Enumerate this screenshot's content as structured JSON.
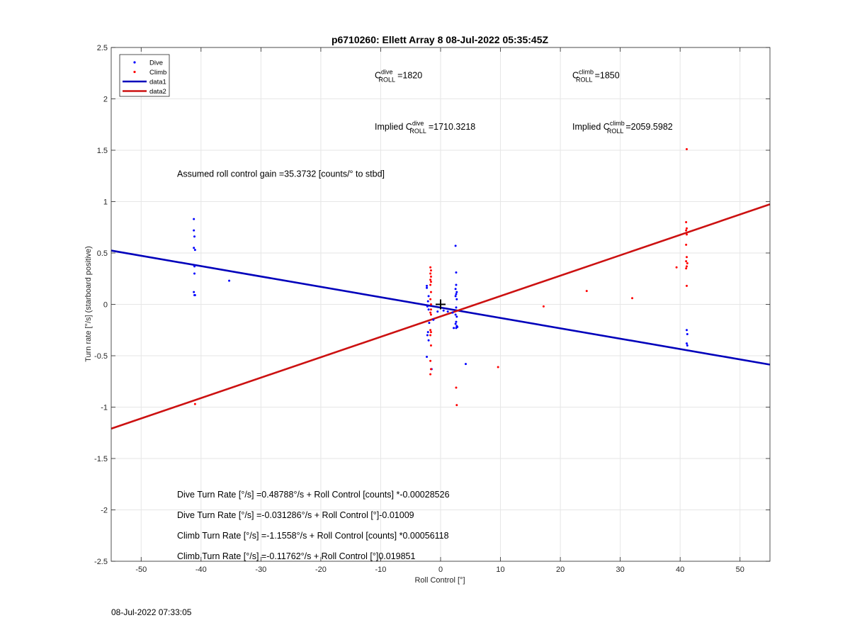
{
  "chart_data": {
    "type": "scatter",
    "title": "p6710260: Ellett Array 8 08-Jul-2022 05:35:45Z",
    "xlabel": "Roll Control [°]",
    "ylabel": "Turn rate [°/s] (starboard positive)",
    "xlim": [
      -55,
      55
    ],
    "ylim": [
      -2.5,
      2.5
    ],
    "xticks": [
      -50,
      -40,
      -30,
      -20,
      -10,
      0,
      10,
      20,
      30,
      40,
      50
    ],
    "yticks": [
      -2.5,
      -2,
      -1.5,
      -1,
      -0.5,
      0,
      0.5,
      1,
      1.5,
      2,
      2.5
    ],
    "grid": true,
    "legend_position": "top-left",
    "legend": [
      "Dive",
      "Climb",
      "data1",
      "data2"
    ],
    "colors": {
      "dive": "#0000ff",
      "climb": "#ff0000",
      "data1": "#0000bb",
      "data2": "#cc1111"
    },
    "series": [
      {
        "name": "Dive",
        "kind": "points",
        "x": [
          -41.2,
          -41.2,
          -41.1,
          -41.2,
          -41.0,
          -41.1,
          -41.1,
          -41.2,
          -41.1,
          -41.0,
          -35.3,
          -2.3,
          -2.3,
          -2.0,
          -2.1,
          -2.2,
          -2.0,
          -1.9,
          -2.1,
          -2.2,
          -2.0,
          -2.3,
          -1.5,
          -1.2,
          -0.5,
          0.5,
          1.2,
          2.0,
          2.5,
          2.6,
          2.6,
          2.5,
          2.7,
          2.6,
          2.5,
          2.7,
          2.6,
          2.5,
          2.7,
          2.6,
          2.5,
          2.7,
          2.6,
          2.2,
          2.8,
          4.2,
          41.1,
          41.2,
          41.1,
          41.2
        ],
        "y": [
          0.83,
          0.72,
          0.66,
          0.55,
          0.53,
          0.37,
          0.3,
          0.12,
          0.09,
          0.09,
          0.23,
          0.18,
          0.16,
          0.08,
          0.03,
          -0.02,
          -0.05,
          -0.18,
          -0.27,
          -0.3,
          -0.35,
          -0.51,
          -0.63,
          -0.15,
          -0.07,
          -0.06,
          -0.07,
          -0.08,
          0.57,
          0.31,
          0.19,
          0.15,
          0.12,
          0.1,
          0.08,
          0.05,
          -0.03,
          -0.1,
          -0.12,
          -0.17,
          -0.19,
          -0.21,
          -0.23,
          -0.23,
          -0.22,
          -0.58,
          -0.25,
          -0.29,
          -0.38,
          -0.4
        ]
      },
      {
        "name": "Climb",
        "kind": "points",
        "x": [
          -41.0,
          -1.7,
          -1.6,
          -1.7,
          -1.6,
          -1.7,
          -1.6,
          -1.7,
          -1.6,
          -1.7,
          -1.6,
          -1.7,
          -1.6,
          -1.7,
          -1.6,
          -1.7,
          -1.6,
          -1.7,
          -1.6,
          -1.7,
          -1.6,
          2.6,
          2.7,
          9.6,
          17.2,
          24.4,
          32.0,
          39.4,
          41.1,
          41.0,
          41.1,
          41.0,
          41.1,
          41.0,
          41.1,
          41.0,
          41.1,
          41.0,
          41.1,
          41.2
        ],
        "y": [
          -0.97,
          0.36,
          0.33,
          0.3,
          0.27,
          0.24,
          0.22,
          0.19,
          0.12,
          0.05,
          -0.05,
          -0.08,
          -0.1,
          -0.25,
          -0.27,
          -0.3,
          -0.4,
          -0.55,
          -0.63,
          -0.68,
          0.0,
          -0.81,
          -0.98,
          -0.61,
          -0.02,
          0.13,
          0.06,
          0.36,
          1.51,
          0.8,
          0.74,
          0.72,
          0.68,
          0.58,
          0.46,
          0.42,
          0.37,
          0.35,
          0.18,
          0.4
        ]
      },
      {
        "name": "data1",
        "kind": "line",
        "x": [
          -55,
          55
        ],
        "y": [
          0.523663,
          -0.586237
        ]
      },
      {
        "name": "data2",
        "kind": "line",
        "x": [
          -55,
          55
        ],
        "y": [
          -1.209425,
          0.974185
        ]
      }
    ],
    "annotations": [
      {
        "base": "C",
        "sup": "dive",
        "sub": "ROLL",
        "prefix": "",
        "value": "=1820",
        "x": -11,
        "y": 2.2
      },
      {
        "base": "C",
        "sup": "climb",
        "sub": "ROLL",
        "prefix": "",
        "value": "=1850",
        "x": 22,
        "y": 2.2
      },
      {
        "base": "C",
        "sup": "dive",
        "sub": "ROLL",
        "prefix": "Implied ",
        "value": "=1710.3218",
        "x": -11,
        "y": 1.7
      },
      {
        "base": "C",
        "sup": "climb",
        "sub": "ROLL",
        "prefix": "Implied ",
        "value": "=2059.5982",
        "x": 22,
        "y": 1.7
      },
      {
        "text": "Assumed roll control gain =35.3732 [counts/° to stbd]",
        "x": -44,
        "y": 1.24
      },
      {
        "text": "Dive Turn Rate [°/s] =0.48788°/s + Roll Control [counts] *-0.00028526",
        "x": -44,
        "y": -1.88
      },
      {
        "text": "Dive Turn Rate [°/s] =-0.031286°/s + Roll Control [°]-0.01009",
        "x": -44,
        "y": -2.08
      },
      {
        "text": "Climb Turn Rate [°/s] =-1.1558°/s + Roll Control [counts] *0.00056118",
        "x": -44,
        "y": -2.28
      },
      {
        "text": "Climb Turn Rate [°/s] =-0.11762°/s + Roll Control [°]0.019851",
        "x": -44,
        "y": -2.48
      }
    ],
    "marker": {
      "x": 0,
      "y": 0
    }
  },
  "footer": {
    "timestamp": "08-Jul-2022 07:33:05"
  }
}
